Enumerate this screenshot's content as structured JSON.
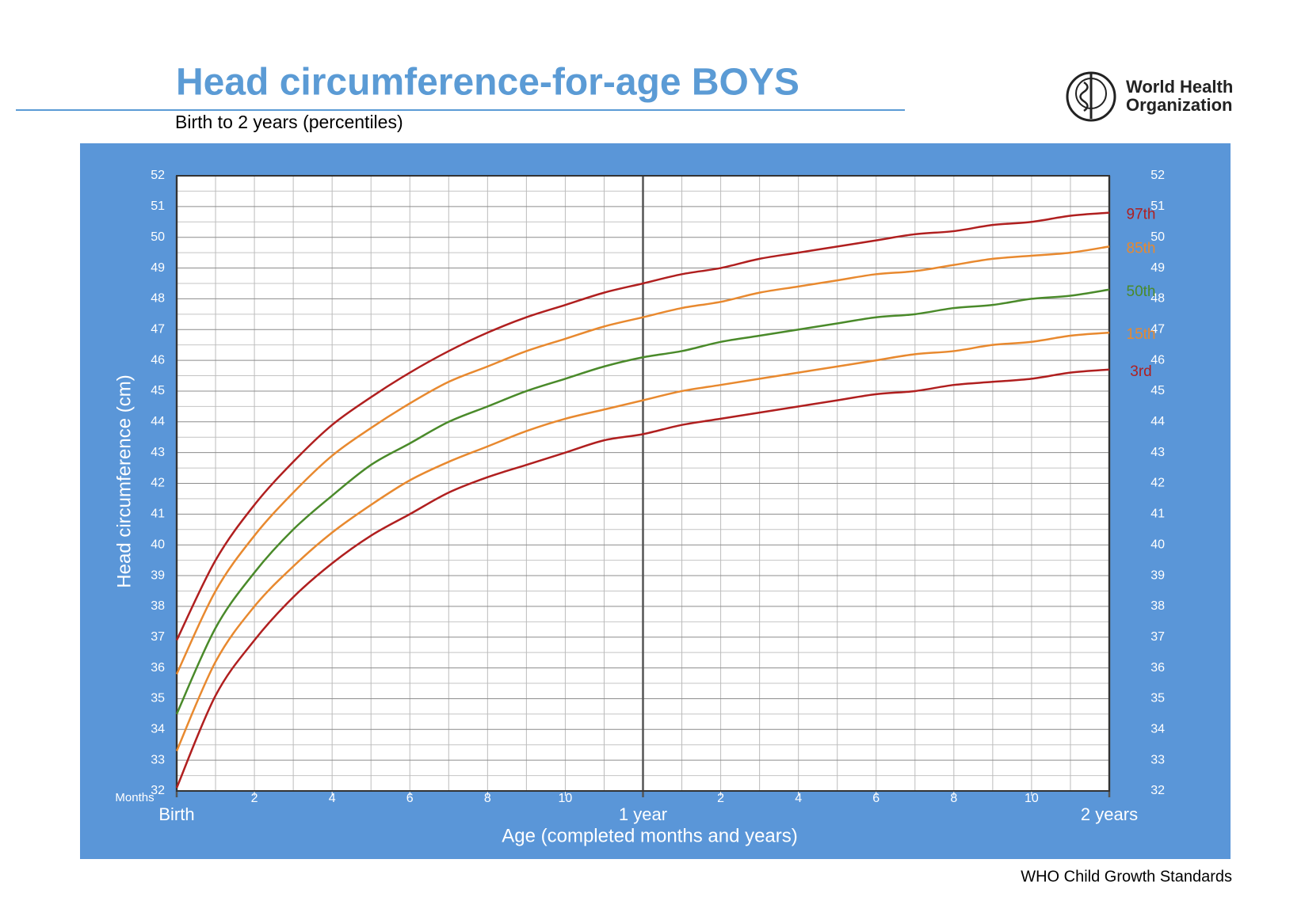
{
  "chart_data": {
    "type": "line",
    "title": "Head circumference-for-age  BOYS",
    "subtitle": "Birth to 2 years (percentiles)",
    "organization": [
      "World Health",
      "Organization"
    ],
    "footer": "WHO Child Growth Standards",
    "y_label": "Head circumference (cm)",
    "x_label": "Age (completed months and years)",
    "x_unit_label": "Months",
    "x": [
      0,
      1,
      2,
      3,
      4,
      5,
      6,
      7,
      8,
      9,
      10,
      11,
      12,
      13,
      14,
      15,
      16,
      17,
      18,
      19,
      20,
      21,
      22,
      23,
      24
    ],
    "xlim": [
      0,
      24
    ],
    "xticks": [
      2,
      4,
      6,
      8,
      10,
      {
        "value": 14,
        "label": "2"
      },
      {
        "value": 16,
        "label": "4"
      },
      {
        "value": 18,
        "label": "6"
      },
      {
        "value": 20,
        "label": "8"
      },
      {
        "value": 22,
        "label": "10"
      }
    ],
    "x_major_ticks": [
      {
        "value": 0,
        "label": "Birth"
      },
      {
        "value": 12,
        "label": "1 year"
      },
      {
        "value": 24,
        "label": "2 years"
      }
    ],
    "ylim": [
      32,
      52
    ],
    "yticks": [
      32,
      33,
      34,
      35,
      36,
      37,
      38,
      39,
      40,
      41,
      42,
      43,
      44,
      45,
      46,
      47,
      48,
      49,
      50,
      51,
      52
    ],
    "y_ticks_both_sides": true,
    "grid": true,
    "series": [
      {
        "name": "97th",
        "color": "#b01f1f",
        "values": [
          36.9,
          39.5,
          41.3,
          42.7,
          43.9,
          44.8,
          45.6,
          46.3,
          46.9,
          47.4,
          47.8,
          48.2,
          48.5,
          48.8,
          49.0,
          49.3,
          49.5,
          49.7,
          49.9,
          50.1,
          50.2,
          50.4,
          50.5,
          50.7,
          50.8
        ]
      },
      {
        "name": "85th",
        "color": "#e8892f",
        "values": [
          35.8,
          38.5,
          40.3,
          41.7,
          42.9,
          43.8,
          44.6,
          45.3,
          45.8,
          46.3,
          46.7,
          47.1,
          47.4,
          47.7,
          47.9,
          48.2,
          48.4,
          48.6,
          48.8,
          48.9,
          49.1,
          49.3,
          49.4,
          49.5,
          49.7
        ]
      },
      {
        "name": "50th",
        "color": "#4a8a2a",
        "values": [
          34.5,
          37.3,
          39.1,
          40.5,
          41.6,
          42.6,
          43.3,
          44.0,
          44.5,
          45.0,
          45.4,
          45.8,
          46.1,
          46.3,
          46.6,
          46.8,
          47.0,
          47.2,
          47.4,
          47.5,
          47.7,
          47.8,
          48.0,
          48.1,
          48.3
        ]
      },
      {
        "name": "15th",
        "color": "#e8892f",
        "values": [
          33.3,
          36.2,
          38.0,
          39.3,
          40.4,
          41.3,
          42.1,
          42.7,
          43.2,
          43.7,
          44.1,
          44.4,
          44.7,
          45.0,
          45.2,
          45.4,
          45.6,
          45.8,
          46.0,
          46.2,
          46.3,
          46.5,
          46.6,
          46.8,
          46.9
        ]
      },
      {
        "name": "3rd",
        "color": "#b01f1f",
        "values": [
          32.1,
          35.1,
          36.9,
          38.3,
          39.4,
          40.3,
          41.0,
          41.7,
          42.2,
          42.6,
          43.0,
          43.4,
          43.6,
          43.9,
          44.1,
          44.3,
          44.5,
          44.7,
          44.9,
          45.0,
          45.2,
          45.3,
          45.4,
          45.6,
          45.7
        ]
      }
    ]
  }
}
